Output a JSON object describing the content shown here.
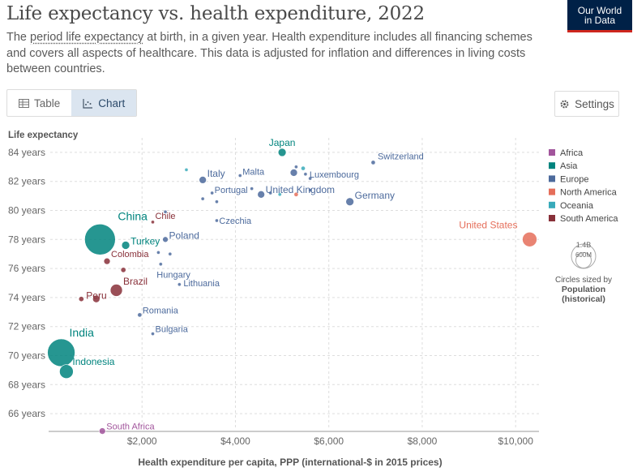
{
  "header": {
    "title": "Life expectancy vs. health expenditure, 2022",
    "subtitle_pre": "The ",
    "subtitle_link": "period life expectancy",
    "subtitle_post": " at birth, in a given year. Health expenditure includes all financing schemes and covers all aspects of healthcare. This data is adjusted for inflation and differences in living costs between countries.",
    "logo_line1": "Our World",
    "logo_line2": "in Data"
  },
  "tabs": [
    {
      "label": "Table",
      "icon": "table-icon",
      "active": false
    },
    {
      "label": "Chart",
      "icon": "chart-icon",
      "active": true
    }
  ],
  "settings_label": "Settings",
  "colors": {
    "Africa": "#a2559c",
    "Asia": "#00847e",
    "Europe": "#4c6a9c",
    "North America": "#e56e5a",
    "Oceania": "#38aaba",
    "South America": "#883039"
  },
  "chart_data": {
    "type": "scatter",
    "ylabel": "Life expectancy",
    "xlabel": "Health expenditure per capita, PPP (international-$ in 2015 prices)",
    "xlim": [
      0,
      10500
    ],
    "ylim": [
      65,
      85
    ],
    "x_ticks": [
      2000,
      4000,
      6000,
      8000,
      10000
    ],
    "x_tick_labels": [
      "$2,000",
      "$4,000",
      "$6,000",
      "$8,000",
      "$10,000"
    ],
    "y_ticks": [
      66,
      68,
      70,
      72,
      74,
      76,
      78,
      80,
      82,
      84
    ],
    "y_tick_labels": [
      "66 years",
      "68 years",
      "70 years",
      "72 years",
      "74 years",
      "76 years",
      "78 years",
      "80 years",
      "82 years",
      "84 years"
    ],
    "legend": [
      "Africa",
      "Asia",
      "Europe",
      "North America",
      "Oceania",
      "South America"
    ],
    "legend_placement": "right",
    "size_legend": {
      "values": [
        "1.4B",
        "600M"
      ],
      "note_line1": "Circles sized by",
      "note_line2": "Population",
      "note_line3": "(historical)"
    },
    "points": [
      {
        "label": "Japan",
        "x": 5000,
        "y": 84.0,
        "region": "Asia",
        "r": 5
      },
      {
        "label": "Switzerland",
        "x": 6950,
        "y": 83.3,
        "region": "Europe",
        "r": 2.5
      },
      {
        "label": "Malta",
        "x": 4100,
        "y": 82.4,
        "region": "Europe",
        "r": 2
      },
      {
        "label": "Italy",
        "x": 3300,
        "y": 82.1,
        "region": "Europe",
        "r": 4.5
      },
      {
        "label": "Luxembourg",
        "x": 5500,
        "y": 82.5,
        "region": "Europe",
        "r": 2
      },
      {
        "label": "",
        "x": 5250,
        "y": 82.6,
        "region": "Europe",
        "r": 4.5
      },
      {
        "label": "",
        "x": 2950,
        "y": 82.8,
        "region": "Oceania",
        "r": 2
      },
      {
        "label": "",
        "x": 5450,
        "y": 82.9,
        "region": "Oceania",
        "r": 2.5
      },
      {
        "label": "",
        "x": 5300,
        "y": 83.0,
        "region": "Europe",
        "r": 2
      },
      {
        "label": "",
        "x": 5600,
        "y": 82.2,
        "region": "Europe",
        "r": 2
      },
      {
        "label": "Portugal",
        "x": 3500,
        "y": 81.2,
        "region": "Europe",
        "r": 2
      },
      {
        "label": "",
        "x": 3300,
        "y": 80.8,
        "region": "Europe",
        "r": 2
      },
      {
        "label": "",
        "x": 3600,
        "y": 80.6,
        "region": "Europe",
        "r": 2
      },
      {
        "label": "United Kingdom",
        "x": 4550,
        "y": 81.1,
        "region": "Europe",
        "r": 4.5
      },
      {
        "label": "",
        "x": 4350,
        "y": 81.5,
        "region": "Europe",
        "r": 2
      },
      {
        "label": "",
        "x": 4750,
        "y": 81.2,
        "region": "Europe",
        "r": 2
      },
      {
        "label": "",
        "x": 4950,
        "y": 81.1,
        "region": "Oceania",
        "r": 2
      },
      {
        "label": "",
        "x": 5300,
        "y": 81.1,
        "region": "North America",
        "r": 2.5
      },
      {
        "label": "",
        "x": 5600,
        "y": 81.4,
        "region": "Europe",
        "r": 2
      },
      {
        "label": "Germany",
        "x": 6450,
        "y": 80.6,
        "region": "Europe",
        "r": 5
      },
      {
        "label": "Chile",
        "x": 2230,
        "y": 79.2,
        "region": "South America",
        "r": 2
      },
      {
        "label": "",
        "x": 2500,
        "y": 79.9,
        "region": "Europe",
        "r": 2
      },
      {
        "label": "Czechia",
        "x": 3600,
        "y": 79.3,
        "region": "Europe",
        "r": 2
      },
      {
        "label": "China",
        "x": 1100,
        "y": 78.0,
        "region": "Asia",
        "r": 19
      },
      {
        "label": "Turkey",
        "x": 1650,
        "y": 77.6,
        "region": "Asia",
        "r": 5
      },
      {
        "label": "Poland",
        "x": 2500,
        "y": 78.0,
        "region": "Europe",
        "r": 3.5
      },
      {
        "label": "United States",
        "x": 10300,
        "y": 78.0,
        "region": "North America",
        "r": 9
      },
      {
        "label": "Colombia",
        "x": 1250,
        "y": 76.5,
        "region": "South America",
        "r": 4
      },
      {
        "label": "",
        "x": 1600,
        "y": 75.9,
        "region": "South America",
        "r": 3
      },
      {
        "label": "",
        "x": 2350,
        "y": 77.1,
        "region": "Europe",
        "r": 2
      },
      {
        "label": "",
        "x": 2600,
        "y": 77.0,
        "region": "Europe",
        "r": 2
      },
      {
        "label": "Hungary",
        "x": 2400,
        "y": 76.3,
        "region": "Europe",
        "r": 2
      },
      {
        "label": "Brazil",
        "x": 1450,
        "y": 74.5,
        "region": "South America",
        "r": 7.5
      },
      {
        "label": "Lithuania",
        "x": 2800,
        "y": 74.9,
        "region": "Europe",
        "r": 2
      },
      {
        "label": "Peru",
        "x": 1020,
        "y": 73.9,
        "region": "South America",
        "r": 4.5
      },
      {
        "label": "",
        "x": 700,
        "y": 73.9,
        "region": "South America",
        "r": 3
      },
      {
        "label": "Romania",
        "x": 1950,
        "y": 72.8,
        "region": "Europe",
        "r": 2.5
      },
      {
        "label": "Bulgaria",
        "x": 2230,
        "y": 71.5,
        "region": "Europe",
        "r": 2
      },
      {
        "label": "India",
        "x": 270,
        "y": 70.2,
        "region": "Asia",
        "r": 17
      },
      {
        "label": "Indonesia",
        "x": 380,
        "y": 68.9,
        "region": "Asia",
        "r": 8.5
      },
      {
        "label": "South Africa",
        "x": 1150,
        "y": 64.8,
        "region": "Africa",
        "r": 4
      }
    ]
  }
}
